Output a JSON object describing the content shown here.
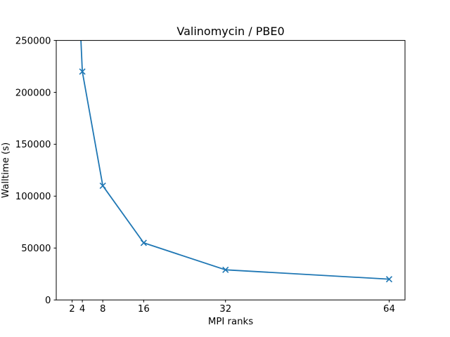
{
  "figure": {
    "background": "#ffffff",
    "axis_color": "#000000"
  },
  "chart_data": {
    "type": "line",
    "title": "Valinomycin / PBE0",
    "xlabel": "MPI ranks",
    "ylabel": "Walltime (s)",
    "x": [
      2,
      4,
      8,
      16,
      32,
      64
    ],
    "series": [
      {
        "name": "walltime",
        "color": "#1f77b4",
        "marker": "x",
        "values": [
          440000,
          220000,
          110000,
          55000,
          29000,
          20000
        ]
      }
    ],
    "xlim": [
      -1.1,
      67.1
    ],
    "ylim": [
      0,
      250000
    ],
    "x_ticks": [
      2,
      4,
      8,
      16,
      32,
      64
    ],
    "y_ticks": [
      0,
      50000,
      100000,
      150000,
      200000,
      250000
    ],
    "grid": false,
    "legend_position": "none"
  }
}
